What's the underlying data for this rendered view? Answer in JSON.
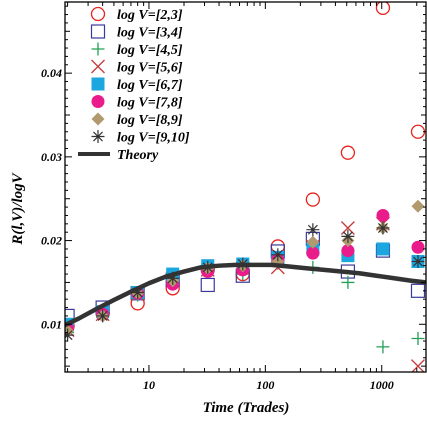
{
  "chart_data": {
    "type": "scatter",
    "xlabel": "Time (Trades)",
    "ylabel": "R(l,V)/logV",
    "x_scale": "log",
    "xlim": [
      1.9,
      2400
    ],
    "ylim": [
      0.0043,
      0.0485
    ],
    "x_ticks": [
      {
        "value": 10,
        "label": "10"
      },
      {
        "value": 100,
        "label": "100"
      },
      {
        "value": 1000,
        "label": "1000"
      }
    ],
    "y_ticks": [
      {
        "value": 0.01,
        "label": "0.01"
      },
      {
        "value": 0.02,
        "label": "0.02"
      },
      {
        "value": 0.03,
        "label": "0.03"
      },
      {
        "value": 0.04,
        "label": "0.04"
      }
    ],
    "grid": false,
    "legend_position": "top-left",
    "x": [
      2,
      4,
      8,
      16,
      32,
      64,
      128,
      256,
      512,
      1024,
      2048
    ],
    "series": [
      {
        "name": "log V=[2,3]",
        "marker": "circle-open",
        "color": "#e8221c",
        "values": [
          0.0098,
          0.0113,
          0.0125,
          0.0143,
          0.0165,
          0.016,
          0.0193,
          0.0249,
          0.0305,
          0.0478,
          0.033
        ]
      },
      {
        "name": "log V=[3,4]",
        "marker": "square-open",
        "color": "#3a3a9c",
        "values": [
          0.011,
          0.012,
          0.0137,
          0.0153,
          0.0147,
          0.0158,
          0.0187,
          0.0202,
          0.0163,
          0.0188,
          0.014
        ]
      },
      {
        "name": "log V=[4,5]",
        "marker": "plus",
        "color": "#22a055",
        "values": [
          0.009,
          0.0112,
          0.0135,
          0.0156,
          0.0163,
          0.016,
          0.0173,
          0.0168,
          0.015,
          0.0073,
          0.0083
        ]
      },
      {
        "name": "log V=[5,6]",
        "marker": "x",
        "color": "#c73a3a",
        "values": [
          0.0093,
          0.0112,
          0.0136,
          0.0155,
          0.0165,
          0.0167,
          0.0168,
          0.0193,
          0.0215,
          0.022,
          0.005
        ]
      },
      {
        "name": "log V=[6,7]",
        "marker": "square-filled",
        "color": "#1ba6e0",
        "values": [
          0.01,
          0.0115,
          0.0138,
          0.016,
          0.017,
          0.0172,
          0.018,
          0.019,
          0.0182,
          0.019,
          0.0175
        ]
      },
      {
        "name": "log V=[7,8]",
        "marker": "circle-filled",
        "color": "#ea1c8c",
        "values": [
          0.0095,
          0.0112,
          0.0137,
          0.0148,
          0.0163,
          0.0165,
          0.0177,
          0.0185,
          0.0188,
          0.023,
          0.0192
        ]
      },
      {
        "name": "log V=[8,9]",
        "marker": "diamond-filled",
        "color": "#b09a6e",
        "values": [
          0.0092,
          0.011,
          0.0137,
          0.0152,
          0.0167,
          0.017,
          0.0175,
          0.0198,
          0.02,
          0.0215,
          0.0241
        ]
      },
      {
        "name": "log V=[9,10]",
        "marker": "asterisk",
        "color": "#333333",
        "values": [
          0.0087,
          0.011,
          0.0138,
          0.0155,
          0.0168,
          0.0172,
          0.0183,
          0.0213,
          0.0205,
          0.0215,
          0.0175
        ]
      }
    ],
    "theory": {
      "name": "Theory",
      "color": "#333333",
      "x": [
        1.9,
        2.5,
        3.5,
        5,
        7,
        10,
        14,
        20,
        28,
        40,
        56,
        80,
        112,
        160,
        224,
        320,
        448,
        640,
        900,
        1280,
        1800,
        2400
      ],
      "y": [
        0.0099,
        0.0107,
        0.0118,
        0.0129,
        0.0139,
        0.0149,
        0.0157,
        0.0163,
        0.0168,
        0.017,
        0.0171,
        0.0171,
        0.0171,
        0.0169,
        0.0167,
        0.0165,
        0.0163,
        0.0161,
        0.0158,
        0.0155,
        0.0152,
        0.015
      ]
    }
  }
}
